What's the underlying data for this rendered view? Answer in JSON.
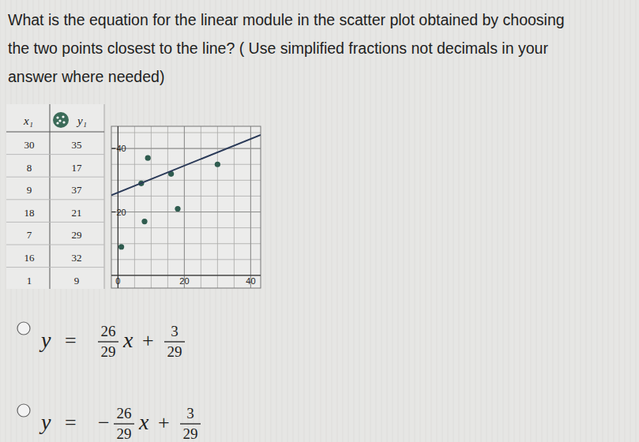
{
  "question": {
    "lines": [
      "What is the equation for the linear module in the scatter plot obtained by choosing",
      "the two points closest to the line? ( Use simplified fractions not decimals in your",
      "answer where needed)"
    ]
  },
  "table": {
    "header": [
      "x₁",
      "y₁"
    ],
    "rows": [
      [
        30,
        35
      ],
      [
        8,
        17
      ],
      [
        9,
        37
      ],
      [
        18,
        21
      ],
      [
        7,
        29
      ],
      [
        16,
        32
      ],
      [
        1,
        9
      ]
    ]
  },
  "chart_data": {
    "type": "scatter",
    "xlim": [
      -2,
      43
    ],
    "ylim": [
      -4,
      47
    ],
    "xticks": [
      0,
      20,
      40
    ],
    "yticks": [
      20,
      40
    ],
    "grid": true,
    "series": [
      {
        "type": "scatter",
        "marker": "circle",
        "color": "#2f5c4f",
        "x": [
          30,
          8,
          9,
          18,
          7,
          16,
          1
        ],
        "values": [
          35,
          17,
          37,
          21,
          29,
          32,
          9
        ]
      },
      {
        "type": "line",
        "line_style": "solid",
        "color": "#2a3a58",
        "x": [
          -2,
          43
        ],
        "values": [
          25.3,
          44.3
        ]
      }
    ]
  },
  "options": [
    {
      "lhs": "y",
      "eq": "=",
      "slope_num": "26",
      "slope_den": "29",
      "var": "x",
      "plus": "+",
      "intercept_num": "3",
      "intercept_den": "29"
    },
    {
      "lhs": "y",
      "eq": "=",
      "sign": "−",
      "slope_num": "26",
      "slope_den": "29",
      "var": "x",
      "plus": "+",
      "intercept_num": "3",
      "intercept_den": "29"
    }
  ]
}
